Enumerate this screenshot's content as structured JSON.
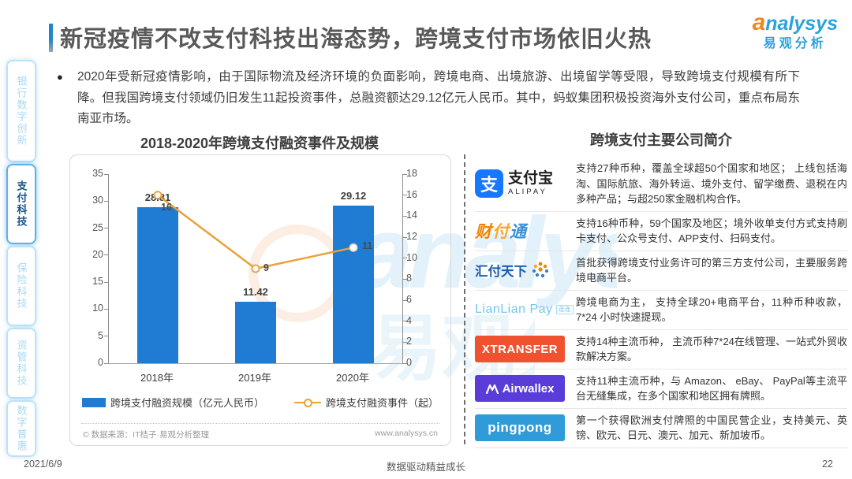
{
  "page": {
    "title": "新冠疫情不改支付科技出海态势，跨境支付市场依旧火热",
    "bullet_text": "2020年受新冠疫情影响，由于国际物流及经济环境的负面影响，跨境电商、出境旅游、出境留学等受限，导致跨境支付规模有所下降。但我国跨境支付领域仍旧发生11起投资事件，总融资额达29.12亿元人民币。其中，蚂蚁集团积极投资海外支付公司，重点布局东南亚市场。",
    "footer": {
      "date": "2021/6/9",
      "slogan": "数据驱动精益成长",
      "page_number": "22"
    }
  },
  "brand": {
    "en_a": "a",
    "en_rest": "nalysys",
    "cn": "易观分析"
  },
  "sidebar": {
    "items": [
      {
        "label": "银行数字创新",
        "active": false
      },
      {
        "label": "支付科技",
        "active": true
      },
      {
        "label": "保险科技",
        "active": false
      },
      {
        "label": "资管科技",
        "active": false
      },
      {
        "label": "数字普惠",
        "active": false
      }
    ]
  },
  "chart_data": {
    "type": "bar",
    "title": "2018-2020年跨境支付融资事件及规模",
    "categories": [
      "2018年",
      "2019年",
      "2020年"
    ],
    "series": [
      {
        "name": "跨境支付融资规模（亿元人民币）",
        "type": "bar",
        "axis": "left",
        "values": [
          28.81,
          11.42,
          29.12
        ],
        "color": "#1F7CD2"
      },
      {
        "name": "跨境支付融资事件（起）",
        "type": "line",
        "axis": "right",
        "values": [
          16,
          9,
          11
        ],
        "color": "#E9A13B"
      }
    ],
    "left_axis": {
      "min": 0,
      "max": 35,
      "ticks": [
        35,
        30,
        25,
        20,
        15,
        10,
        5,
        0
      ]
    },
    "right_axis": {
      "min": 0,
      "max": 18,
      "ticks": [
        18,
        16,
        14,
        12,
        10,
        8,
        6,
        4,
        2,
        0
      ]
    },
    "grid": "off",
    "legend_position": "bottom",
    "source": "© 数据来源：IT桔子·易观分析整理",
    "source_url": "www.analysys.cn"
  },
  "companies": {
    "title": "跨境支付主要公司简介",
    "rows": [
      {
        "name": "支付宝",
        "logo": {
          "icon_char": "支",
          "cn": "支付宝",
          "en": "ALIPAY"
        },
        "desc": "支持27种币种，覆盖全球超50个国家和地区； 上线包括海淘、国际航旅、海外转运、境外支付、留学缴费、退税在内多种产品；与超250家金融机构合作。"
      },
      {
        "name": "财付通",
        "logo": {
          "p1": "财",
          "p2": "付",
          "p3": "通"
        },
        "desc": "支持16种币种，59个国家及地区；境外收单支付方式支持刷卡支付、公众号支付、APP支付、扫码支付。"
      },
      {
        "name": "汇付天下",
        "logo": {
          "cn": "汇付天下"
        },
        "desc": "首批获得跨境支付业务许可的第三方支付公司，主要服务跨境电商平台。"
      },
      {
        "name": "LianLian Pay",
        "logo": {
          "en": "LianLian Pay",
          "cn": "连连"
        },
        "desc": "跨境电商为主， 支持全球20+电商平台，11种币种收款，7*24 小时快速提现。"
      },
      {
        "name": "XTRANSFER",
        "logo": {
          "en": "XTRANSFER"
        },
        "desc": "支持14种主流币种， 主流币种7*24在线管理、一站式外贸收款解决方案。"
      },
      {
        "name": "Airwallex",
        "logo": {
          "en": "Airwallex"
        },
        "desc": "支持11种主流币种，与 Amazon、 eBay、 PayPal等主流平台无缝集成，在多个国家和地区拥有牌照。"
      },
      {
        "name": "pingpong",
        "logo": {
          "en": "pingpong"
        },
        "desc": "第一个获得欧洲支付牌照的中国民营企业，支持美元、英镑、欧元、日元、澳元、加元、新加坡币。"
      }
    ]
  },
  "watermark": {
    "text_en": "analysys",
    "text_cn": "易观分析"
  },
  "colors": {
    "bar_blue": "#1F7CD2",
    "line_orange": "#E9A13B",
    "brand_blue": "#29A3DC",
    "brand_orange": "#F08519",
    "sidebar_active": "#15528C"
  }
}
